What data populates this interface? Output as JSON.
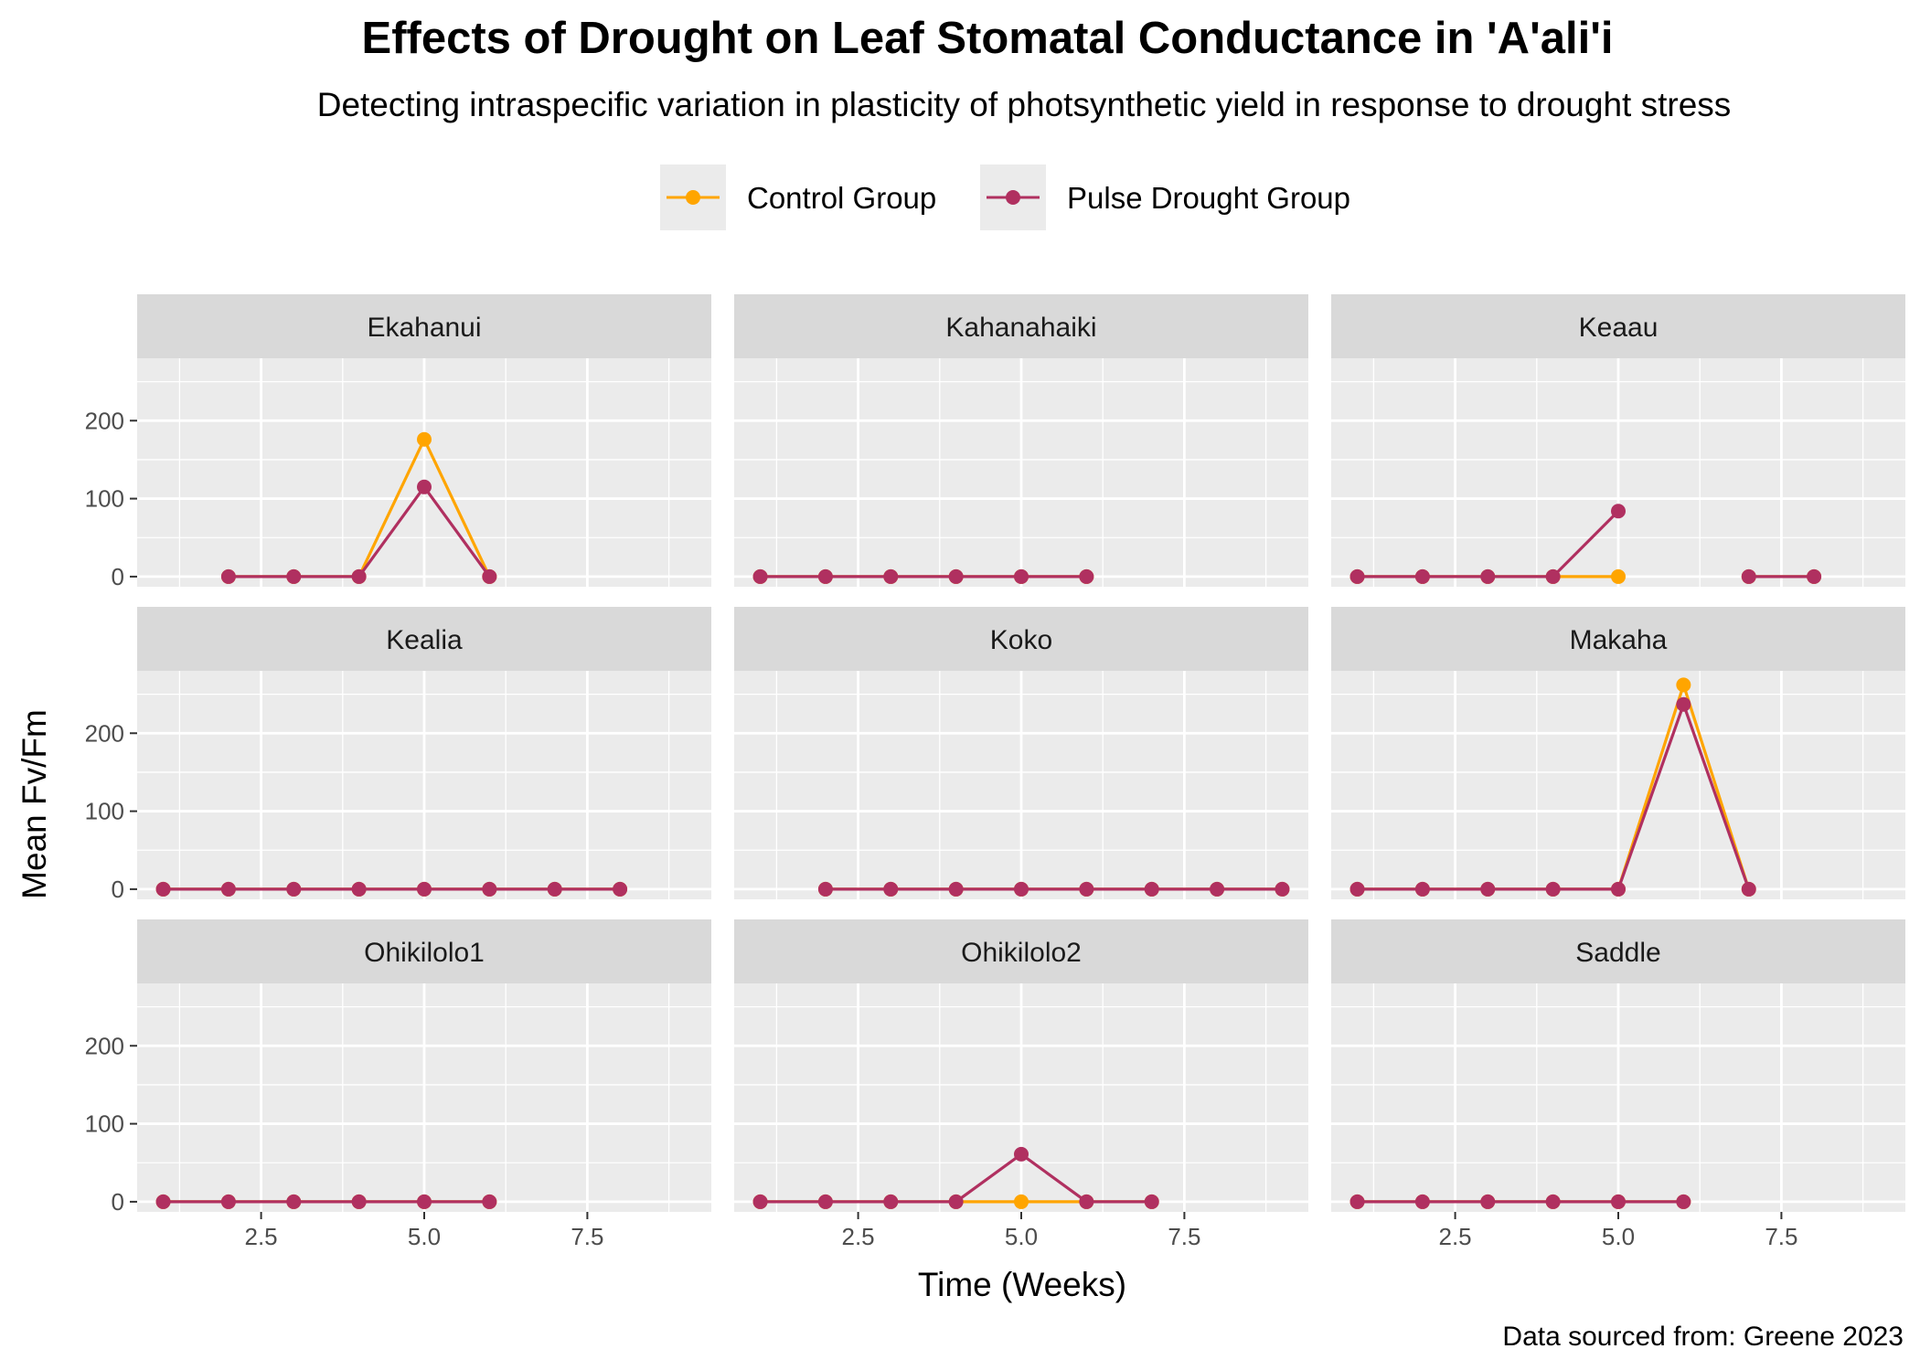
{
  "chart_data": {
    "type": "line",
    "title": "Effects of Drought on Leaf Stomatal Conductance in 'A'ali'i",
    "subtitle": "Detecting intraspecific variation in plasticity of photsynthetic yield in response to drought stress",
    "xlabel": "Time (Weeks)",
    "ylabel": "Mean Fv/Fm",
    "caption": "Data sourced from: Greene 2023",
    "legend_position": "top",
    "facet_layout": "3x3",
    "grid": true,
    "xlim": [
      0.6,
      9.4
    ],
    "ylim": [
      -13,
      280
    ],
    "x_ticks": [
      2.5,
      5.0,
      7.5
    ],
    "x_tick_labels": [
      "2.5",
      "5.0",
      "7.5"
    ],
    "y_ticks": [
      0,
      100,
      200
    ],
    "y_tick_labels": [
      "0",
      "100",
      "200"
    ],
    "series_styles": [
      {
        "name": "Control Group",
        "color": "#FFA500"
      },
      {
        "name": "Pulse Drought Group",
        "color": "#B03060"
      }
    ],
    "panels": [
      {
        "name": "Ekahanui",
        "control": [
          [
            2,
            0
          ],
          [
            3,
            0
          ],
          [
            4,
            0
          ],
          [
            5,
            176
          ],
          [
            6,
            0
          ]
        ],
        "drought": [
          [
            2,
            0
          ],
          [
            3,
            0
          ],
          [
            4,
            0
          ],
          [
            5,
            115
          ],
          [
            6,
            0
          ]
        ]
      },
      {
        "name": "Kahanahaiki",
        "control": [
          [
            1,
            0
          ],
          [
            2,
            0
          ],
          [
            3,
            0
          ],
          [
            4,
            0
          ],
          [
            5,
            0
          ],
          [
            6,
            0
          ]
        ],
        "drought": [
          [
            1,
            0
          ],
          [
            2,
            0
          ],
          [
            3,
            0
          ],
          [
            4,
            0
          ],
          [
            5,
            0
          ],
          [
            6,
            0
          ]
        ]
      },
      {
        "name": "Keaau",
        "control": [
          [
            1,
            0
          ],
          [
            2,
            0
          ],
          [
            3,
            0
          ],
          [
            4,
            0
          ],
          [
            5,
            0
          ],
          null,
          [
            7,
            0
          ],
          [
            8,
            0
          ]
        ],
        "drought": [
          [
            1,
            0
          ],
          [
            2,
            0
          ],
          [
            3,
            0
          ],
          [
            4,
            0
          ],
          [
            5,
            84
          ],
          null,
          [
            7,
            0
          ],
          [
            8,
            0
          ]
        ]
      },
      {
        "name": "Kealia",
        "control": [
          [
            1,
            0
          ],
          [
            2,
            0
          ],
          [
            3,
            0
          ],
          [
            4,
            0
          ],
          [
            5,
            0
          ],
          [
            6,
            0
          ],
          [
            7,
            0
          ],
          [
            8,
            0
          ]
        ],
        "drought": [
          [
            1,
            0
          ],
          [
            2,
            0
          ],
          [
            3,
            0
          ],
          [
            4,
            0
          ],
          [
            5,
            0
          ],
          [
            6,
            0
          ],
          [
            7,
            0
          ],
          [
            8,
            0
          ]
        ]
      },
      {
        "name": "Koko",
        "control": [
          [
            2,
            0
          ],
          [
            3,
            0
          ],
          [
            4,
            0
          ],
          [
            5,
            0
          ],
          [
            6,
            0
          ],
          [
            7,
            0
          ],
          [
            8,
            0
          ],
          [
            9,
            0
          ]
        ],
        "drought": [
          [
            2,
            0
          ],
          [
            3,
            0
          ],
          [
            4,
            0
          ],
          [
            5,
            0
          ],
          [
            6,
            0
          ],
          [
            7,
            0
          ],
          [
            8,
            0
          ],
          [
            9,
            0
          ]
        ]
      },
      {
        "name": "Makaha",
        "control": [
          [
            1,
            0
          ],
          [
            2,
            0
          ],
          [
            3,
            0
          ],
          [
            4,
            0
          ],
          [
            5,
            0
          ],
          [
            6,
            262
          ],
          [
            7,
            0
          ]
        ],
        "drought": [
          [
            1,
            0
          ],
          [
            2,
            0
          ],
          [
            3,
            0
          ],
          [
            4,
            0
          ],
          [
            5,
            0
          ],
          [
            6,
            237
          ],
          [
            7,
            0
          ]
        ]
      },
      {
        "name": "Ohikilolo1",
        "control": [
          [
            1,
            0
          ],
          [
            2,
            0
          ],
          [
            3,
            0
          ],
          [
            4,
            0
          ],
          [
            5,
            0
          ],
          [
            6,
            0
          ]
        ],
        "drought": [
          [
            1,
            0
          ],
          [
            2,
            0
          ],
          [
            3,
            0
          ],
          [
            4,
            0
          ],
          [
            5,
            0
          ],
          [
            6,
            0
          ]
        ]
      },
      {
        "name": "Ohikilolo2",
        "control": [
          [
            1,
            0
          ],
          [
            2,
            0
          ],
          [
            3,
            0
          ],
          [
            4,
            0
          ],
          [
            5,
            0
          ],
          [
            6,
            0
          ],
          [
            7,
            0
          ]
        ],
        "drought": [
          [
            1,
            0
          ],
          [
            2,
            0
          ],
          [
            3,
            0
          ],
          [
            4,
            0
          ],
          [
            5,
            61
          ],
          [
            6,
            0
          ],
          [
            7,
            0
          ]
        ]
      },
      {
        "name": "Saddle",
        "control": [
          [
            1,
            0
          ],
          [
            2,
            0
          ],
          [
            3,
            0
          ],
          [
            4,
            0
          ],
          [
            5,
            0
          ],
          [
            6,
            0
          ]
        ],
        "drought": [
          [
            1,
            0
          ],
          [
            2,
            0
          ],
          [
            3,
            0
          ],
          [
            4,
            0
          ],
          [
            5,
            0
          ],
          [
            6,
            0
          ]
        ]
      }
    ]
  }
}
